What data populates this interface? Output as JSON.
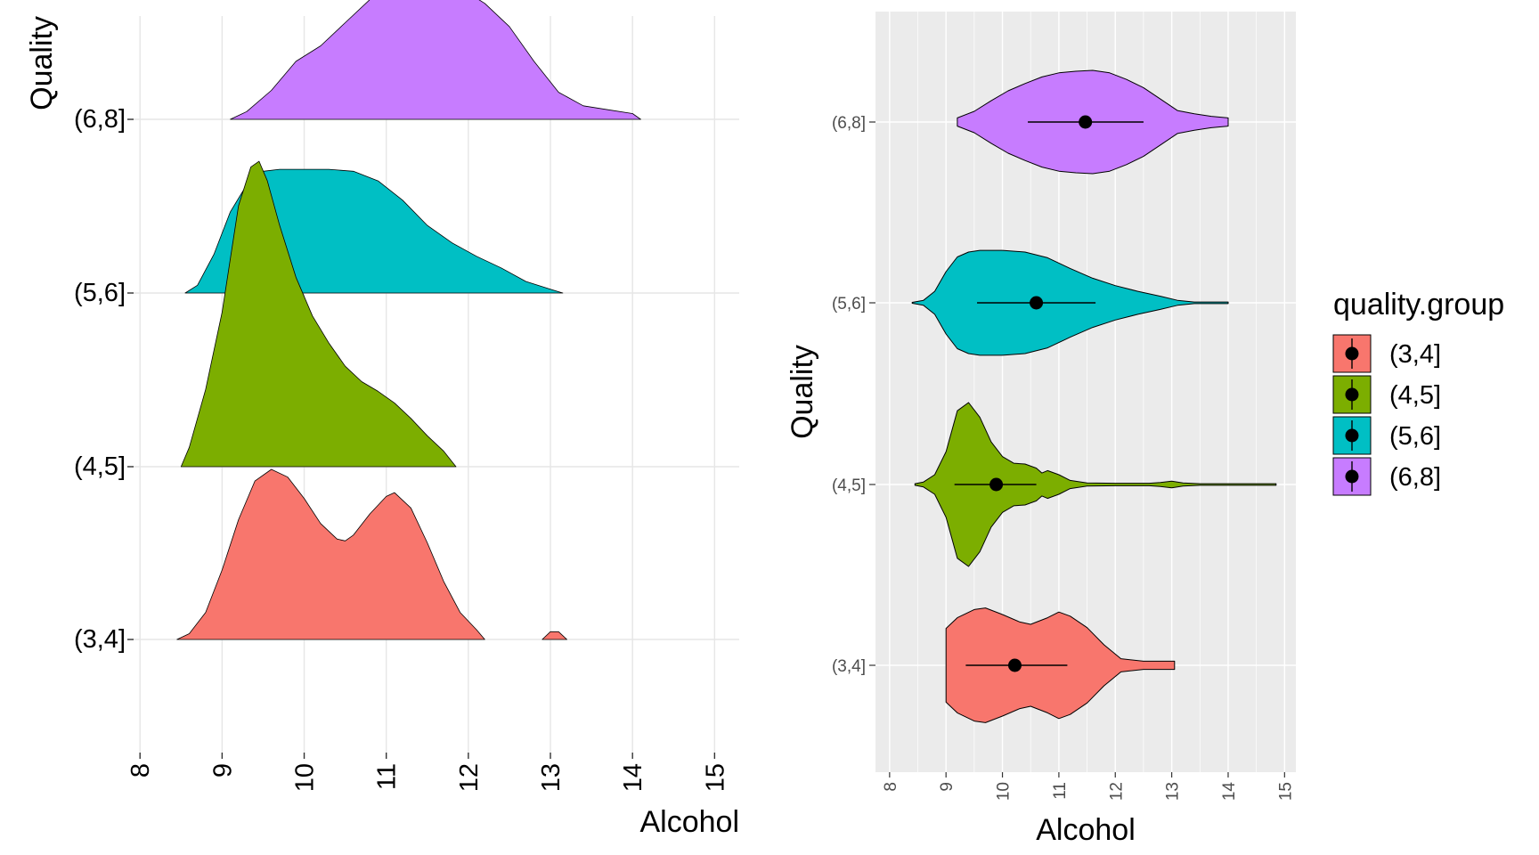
{
  "chart_data": [
    {
      "type": "ridgeline",
      "panel": "left",
      "xlabel": "Alcohol",
      "ylabel": "Quality",
      "xlim": [
        8,
        15
      ],
      "x_ticks": [
        "8",
        "9",
        "10",
        "11",
        "12",
        "13",
        "14",
        "15"
      ],
      "categories": [
        "(3,4]",
        "(4,5]",
        "(5,6]",
        "(6,8]"
      ],
      "grid": true,
      "series": [
        {
          "name": "(3,4]",
          "color": "#F8766D",
          "density": [
            [
              8.45,
              0
            ],
            [
              8.6,
              0.03
            ],
            [
              8.8,
              0.14
            ],
            [
              9.0,
              0.36
            ],
            [
              9.2,
              0.62
            ],
            [
              9.4,
              0.82
            ],
            [
              9.6,
              0.88
            ],
            [
              9.8,
              0.84
            ],
            [
              10.0,
              0.73
            ],
            [
              10.2,
              0.6
            ],
            [
              10.4,
              0.52
            ],
            [
              10.5,
              0.51
            ],
            [
              10.6,
              0.54
            ],
            [
              10.8,
              0.65
            ],
            [
              11.0,
              0.74
            ],
            [
              11.1,
              0.76
            ],
            [
              11.3,
              0.68
            ],
            [
              11.5,
              0.5
            ],
            [
              11.7,
              0.3
            ],
            [
              11.9,
              0.14
            ],
            [
              12.1,
              0.05
            ],
            [
              12.2,
              0
            ]
          ],
          "extra_bump": [
            [
              12.9,
              0
            ],
            [
              13.0,
              0.04
            ],
            [
              13.1,
              0.04
            ],
            [
              13.2,
              0
            ]
          ]
        },
        {
          "name": "(4,5]",
          "color": "#7CAE00",
          "density": [
            [
              8.5,
              0
            ],
            [
              8.6,
              0.1
            ],
            [
              8.8,
              0.4
            ],
            [
              9.0,
              0.8
            ],
            [
              9.2,
              1.35
            ],
            [
              9.35,
              1.55
            ],
            [
              9.45,
              1.58
            ],
            [
              9.55,
              1.48
            ],
            [
              9.7,
              1.25
            ],
            [
              9.9,
              0.98
            ],
            [
              10.1,
              0.78
            ],
            [
              10.3,
              0.64
            ],
            [
              10.5,
              0.52
            ],
            [
              10.7,
              0.44
            ],
            [
              10.9,
              0.39
            ],
            [
              11.1,
              0.33
            ],
            [
              11.3,
              0.25
            ],
            [
              11.5,
              0.16
            ],
            [
              11.7,
              0.08
            ],
            [
              11.85,
              0
            ]
          ]
        },
        {
          "name": "(5,6]",
          "color": "#00BFC4",
          "density": [
            [
              8.55,
              0
            ],
            [
              8.7,
              0.04
            ],
            [
              8.9,
              0.2
            ],
            [
              9.1,
              0.42
            ],
            [
              9.3,
              0.56
            ],
            [
              9.5,
              0.63
            ],
            [
              9.7,
              0.64
            ],
            [
              10.0,
              0.64
            ],
            [
              10.3,
              0.64
            ],
            [
              10.6,
              0.63
            ],
            [
              10.9,
              0.58
            ],
            [
              11.2,
              0.48
            ],
            [
              11.5,
              0.35
            ],
            [
              11.8,
              0.26
            ],
            [
              12.1,
              0.19
            ],
            [
              12.4,
              0.13
            ],
            [
              12.7,
              0.06
            ],
            [
              13.0,
              0.02
            ],
            [
              13.15,
              0
            ]
          ]
        },
        {
          "name": "(6,8]",
          "color": "#C77CFF",
          "density": [
            [
              9.1,
              0
            ],
            [
              9.3,
              0.04
            ],
            [
              9.6,
              0.15
            ],
            [
              9.9,
              0.3
            ],
            [
              10.2,
              0.38
            ],
            [
              10.5,
              0.5
            ],
            [
              10.8,
              0.62
            ],
            [
              11.0,
              0.66
            ],
            [
              11.3,
              0.66
            ],
            [
              11.6,
              0.68
            ],
            [
              11.9,
              0.68
            ],
            [
              12.2,
              0.6
            ],
            [
              12.5,
              0.48
            ],
            [
              12.8,
              0.3
            ],
            [
              13.1,
              0.14
            ],
            [
              13.4,
              0.07
            ],
            [
              13.7,
              0.05
            ],
            [
              14.0,
              0.03
            ],
            [
              14.1,
              0
            ]
          ]
        }
      ]
    },
    {
      "type": "violin",
      "panel": "right",
      "xlabel": "Alcohol",
      "ylabel": "Quality",
      "xlim": [
        7.75,
        15.2
      ],
      "x_ticks": [
        "8",
        "9",
        "10",
        "11",
        "12",
        "13",
        "14",
        "15"
      ],
      "categories": [
        "(3,4]",
        "(4,5]",
        "(5,6]",
        "(6,8]"
      ],
      "legend_title": "quality.group",
      "legend_position": "right",
      "series": [
        {
          "name": "(3,4]",
          "color": "#F8766D",
          "mean": 10.22,
          "sd_low": 9.35,
          "sd_high": 11.15,
          "width": [
            [
              9.0,
              0.45
            ],
            [
              9.2,
              0.58
            ],
            [
              9.5,
              0.68
            ],
            [
              9.7,
              0.7
            ],
            [
              10.0,
              0.62
            ],
            [
              10.3,
              0.53
            ],
            [
              10.5,
              0.5
            ],
            [
              10.8,
              0.58
            ],
            [
              11.0,
              0.65
            ],
            [
              11.2,
              0.6
            ],
            [
              11.5,
              0.46
            ],
            [
              11.8,
              0.25
            ],
            [
              12.1,
              0.08
            ],
            [
              12.5,
              0.05
            ],
            [
              13.0,
              0.05
            ],
            [
              13.05,
              0.05
            ]
          ]
        },
        {
          "name": "(4,5]",
          "color": "#7CAE00",
          "mean": 9.89,
          "sd_low": 9.15,
          "sd_high": 10.6,
          "width": [
            [
              8.45,
              0.01
            ],
            [
              8.6,
              0.03
            ],
            [
              8.8,
              0.12
            ],
            [
              9.0,
              0.4
            ],
            [
              9.2,
              0.9
            ],
            [
              9.4,
              1.0
            ],
            [
              9.6,
              0.82
            ],
            [
              9.8,
              0.52
            ],
            [
              10.0,
              0.34
            ],
            [
              10.2,
              0.26
            ],
            [
              10.4,
              0.25
            ],
            [
              10.6,
              0.2
            ],
            [
              10.7,
              0.14
            ],
            [
              10.8,
              0.17
            ],
            [
              11.0,
              0.12
            ],
            [
              11.2,
              0.05
            ],
            [
              11.5,
              0.02
            ],
            [
              12.0,
              0.015
            ],
            [
              12.6,
              0.015
            ],
            [
              12.8,
              0.025
            ],
            [
              13.0,
              0.04
            ],
            [
              13.2,
              0.02
            ],
            [
              13.5,
              0.01
            ],
            [
              14.0,
              0.01
            ],
            [
              14.85,
              0.01
            ]
          ]
        },
        {
          "name": "(5,6]",
          "color": "#00BFC4",
          "mean": 10.6,
          "sd_low": 9.55,
          "sd_high": 11.65,
          "width": [
            [
              8.4,
              0.005
            ],
            [
              8.6,
              0.03
            ],
            [
              8.8,
              0.14
            ],
            [
              9.0,
              0.38
            ],
            [
              9.2,
              0.56
            ],
            [
              9.4,
              0.62
            ],
            [
              9.6,
              0.64
            ],
            [
              10.0,
              0.64
            ],
            [
              10.4,
              0.62
            ],
            [
              10.8,
              0.55
            ],
            [
              11.2,
              0.42
            ],
            [
              11.6,
              0.3
            ],
            [
              12.0,
              0.21
            ],
            [
              12.4,
              0.14
            ],
            [
              12.8,
              0.08
            ],
            [
              13.1,
              0.03
            ],
            [
              13.4,
              0.01
            ],
            [
              14.0,
              0.01
            ]
          ]
        },
        {
          "name": "(6,8]",
          "color": "#C77CFF",
          "mean": 11.47,
          "sd_low": 10.45,
          "sd_high": 12.5,
          "width": [
            [
              9.2,
              0.05
            ],
            [
              9.5,
              0.13
            ],
            [
              9.8,
              0.26
            ],
            [
              10.1,
              0.38
            ],
            [
              10.4,
              0.47
            ],
            [
              10.7,
              0.55
            ],
            [
              11.0,
              0.6
            ],
            [
              11.3,
              0.62
            ],
            [
              11.6,
              0.63
            ],
            [
              11.9,
              0.6
            ],
            [
              12.2,
              0.52
            ],
            [
              12.5,
              0.42
            ],
            [
              12.8,
              0.28
            ],
            [
              13.1,
              0.14
            ],
            [
              13.4,
              0.1
            ],
            [
              13.7,
              0.07
            ],
            [
              14.0,
              0.05
            ]
          ]
        }
      ]
    }
  ]
}
